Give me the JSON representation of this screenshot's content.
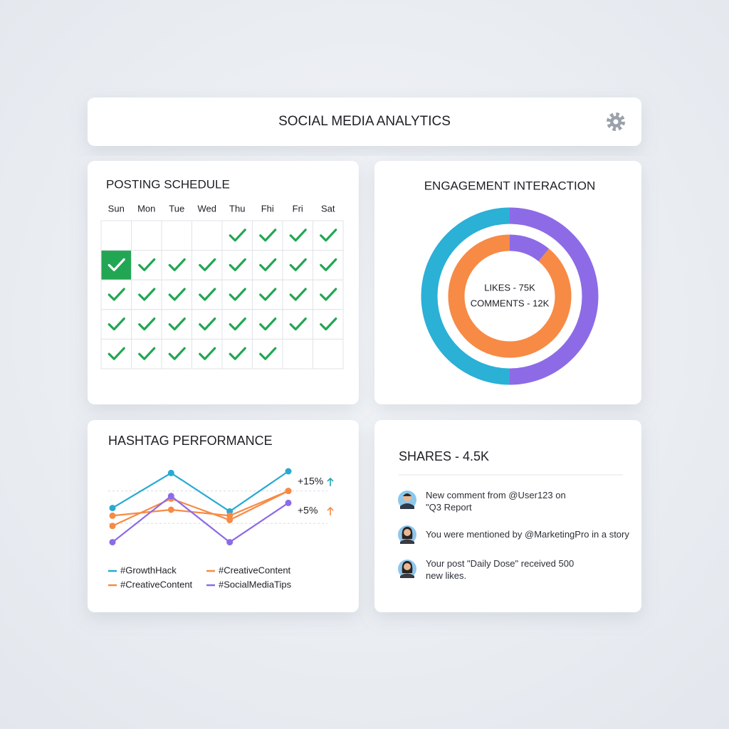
{
  "header": {
    "title": "SOCIAL MEDIA ANALYTICS"
  },
  "schedule": {
    "title": "POSTING SCHEDULE",
    "days": [
      "Sun",
      "Mon",
      "Tue",
      "Wed",
      "Thu",
      "Fhi",
      "Fri",
      "Sat"
    ],
    "rows": [
      [
        0,
        0,
        0,
        0,
        1,
        1,
        1,
        1
      ],
      [
        2,
        1,
        1,
        1,
        1,
        1,
        1,
        1
      ],
      [
        1,
        1,
        1,
        1,
        1,
        1,
        1,
        1
      ],
      [
        1,
        1,
        1,
        1,
        1,
        1,
        1,
        1
      ],
      [
        1,
        1,
        1,
        1,
        1,
        1,
        0,
        0
      ]
    ],
    "check_color": "#22a653"
  },
  "engagement": {
    "title": "ENGAGEMENT INTERACTION",
    "labels": [
      "LIKES - 75K",
      "COMMENTS - 12K"
    ],
    "rings": [
      {
        "segments": [
          {
            "color": "#8d6be6",
            "value": 50
          },
          {
            "color": "#2bb0d6",
            "value": 50
          }
        ]
      },
      {
        "segments": [
          {
            "color": "#8d6be6",
            "value": 11
          },
          {
            "color": "#f78a45",
            "value": 89
          }
        ]
      }
    ]
  },
  "hashtags": {
    "type": "line",
    "title": "HASHTAG PERFORMANCE",
    "ylim": [
      0,
      100
    ],
    "gridlines": [
      67,
      29
    ],
    "series": [
      {
        "name": "#GrowthHack",
        "color": "#2aa9d2",
        "values": [
          47,
          88,
          43,
          90
        ]
      },
      {
        "name": "#CreativeContent",
        "color": "#f78a45",
        "values": [
          38,
          45,
          38,
          67
        ]
      },
      {
        "name": "#CreativeContent",
        "color": "#f78a45",
        "values": [
          26,
          58,
          33,
          67
        ]
      },
      {
        "name": "#SocialMediaTips",
        "color": "#8d6be6",
        "values": [
          7,
          61,
          7,
          53
        ]
      }
    ],
    "annotations": [
      {
        "text": "+15%",
        "color": "#22a5b8",
        "arrow_color": "#22a5b8"
      },
      {
        "text": "+5%",
        "color": "#8d6be6",
        "arrow_color": "#f78a45"
      }
    ]
  },
  "activity": {
    "title": "SHARES - 4.5K",
    "items": [
      "New comment from @User123 on \"Q3 Report",
      "You were mentioned by @MarketingPro in a story",
      "Your post \"Daily Dose\" received 500 new likes."
    ]
  }
}
